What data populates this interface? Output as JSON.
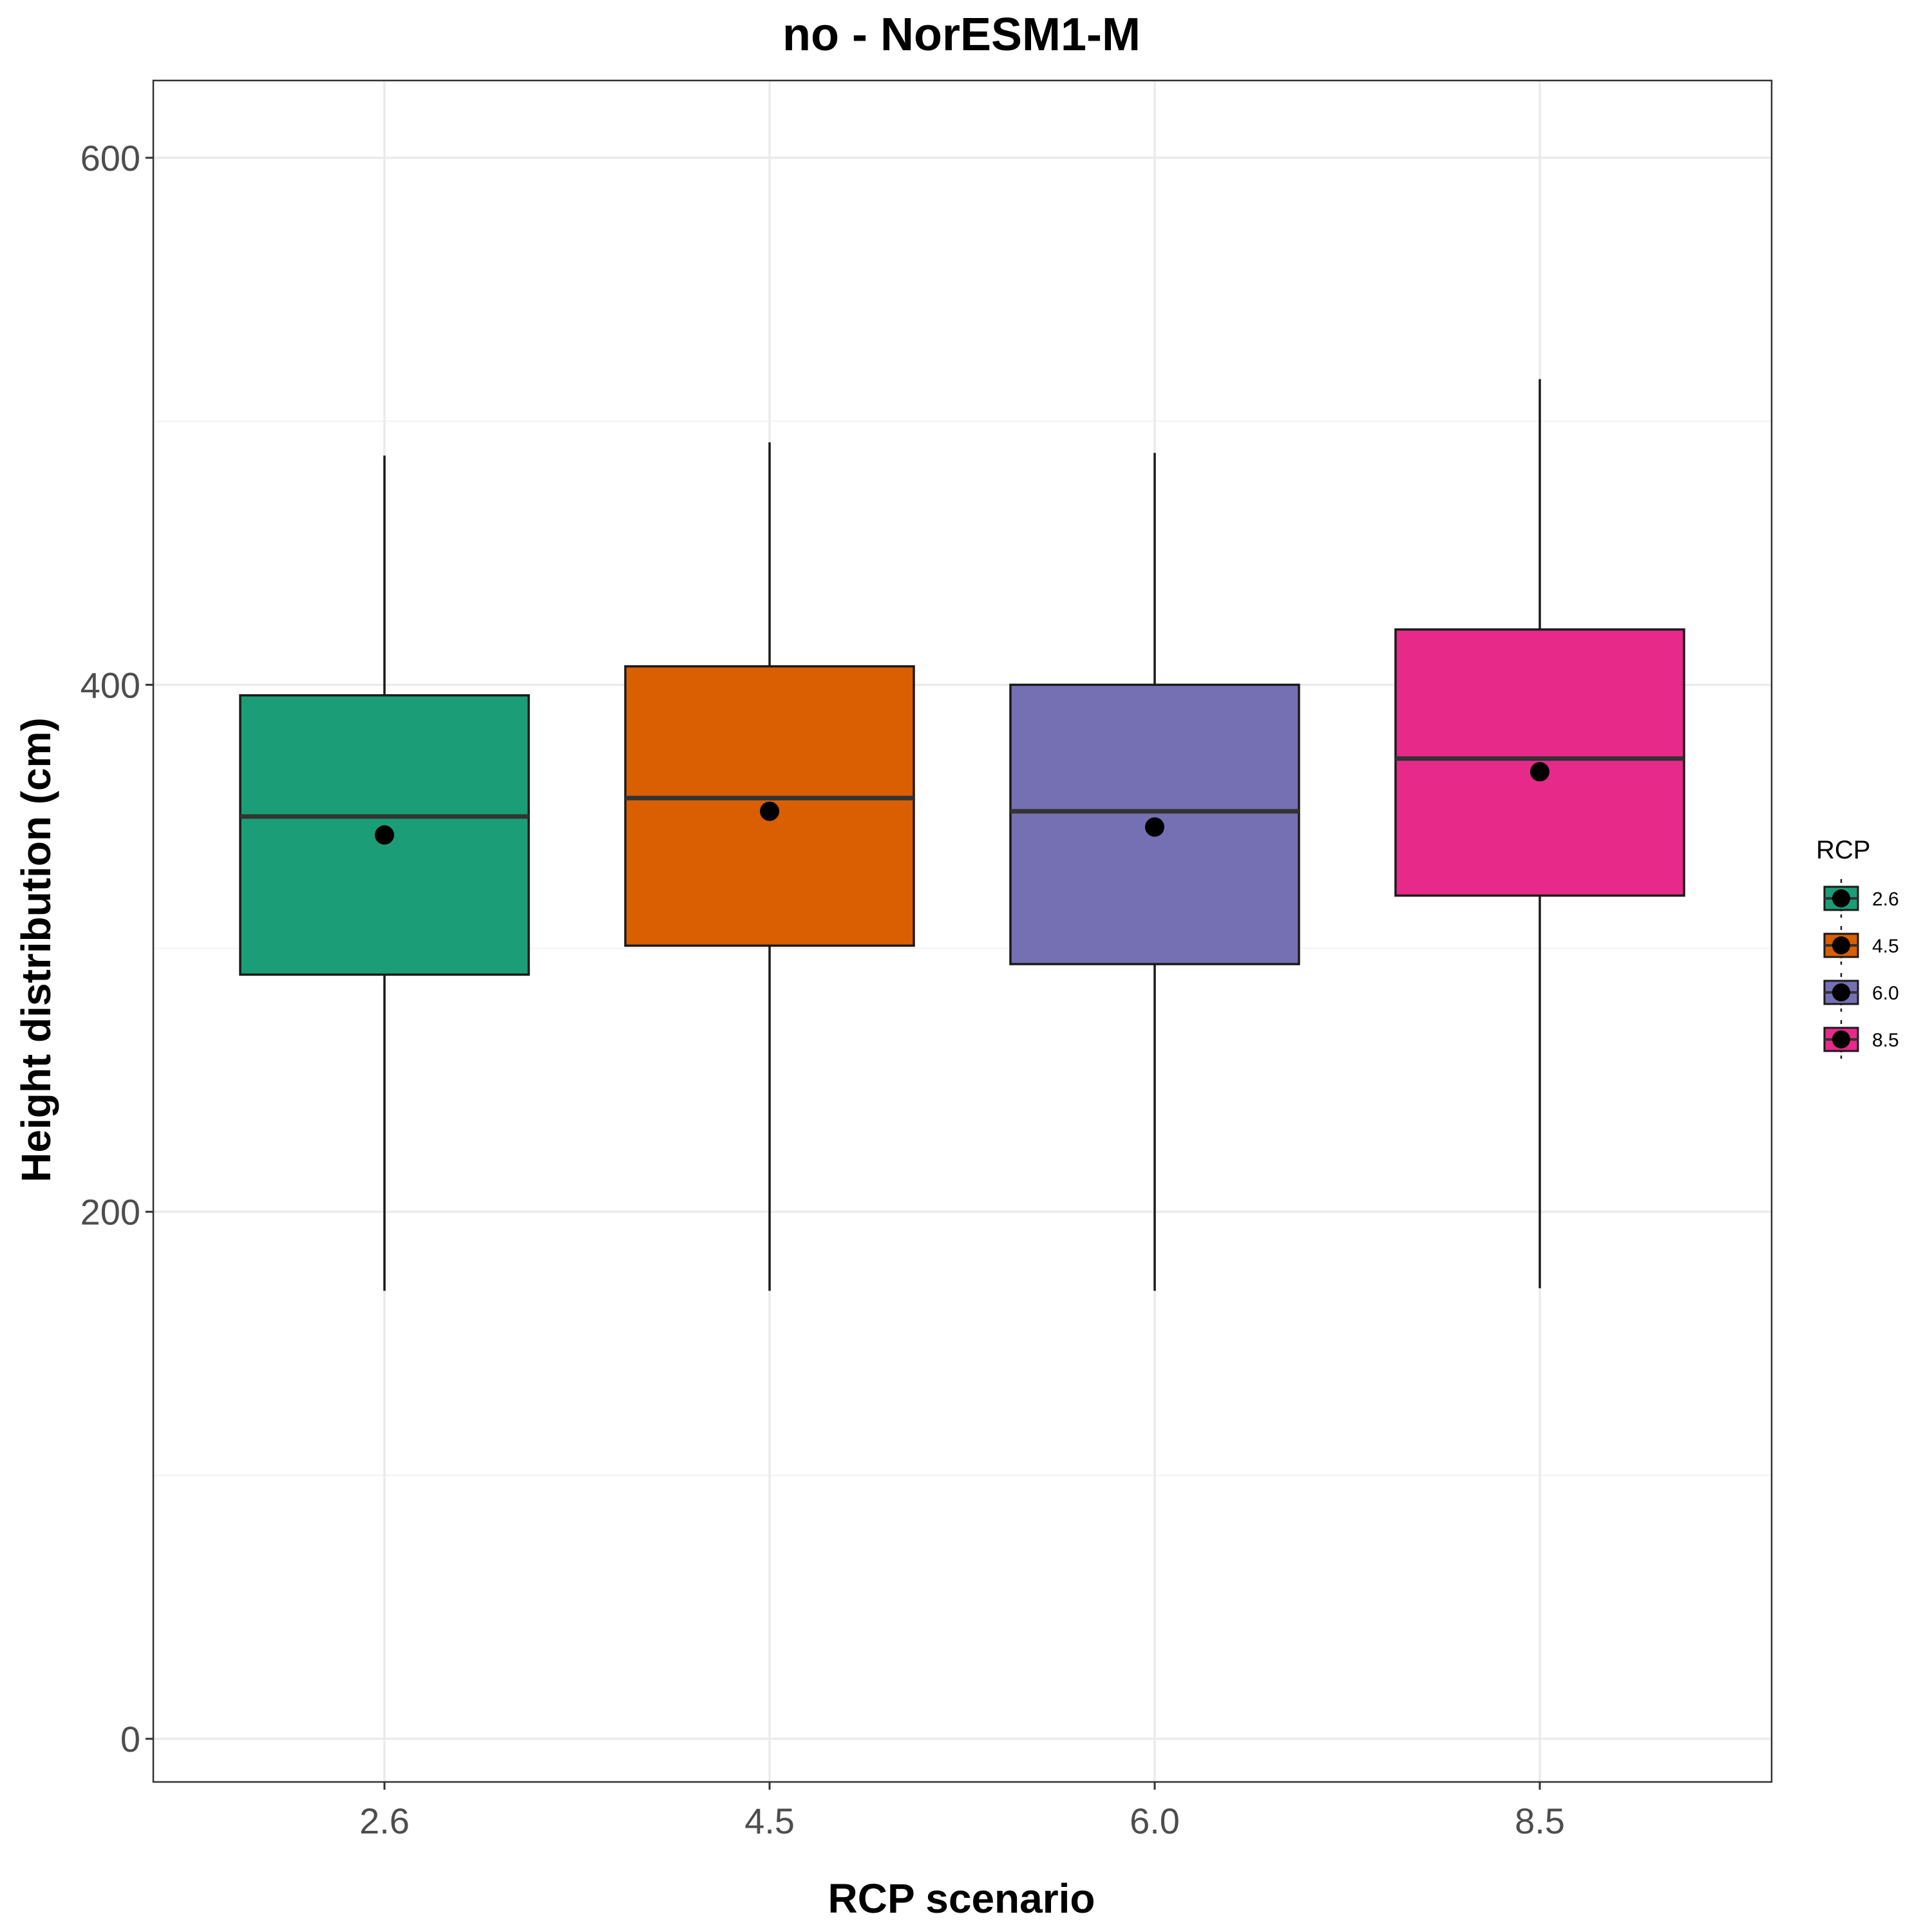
{
  "chart_data": {
    "type": "boxplot",
    "title": "no - NorESM1-M",
    "xlabel": "RCP scenario",
    "ylabel": "Height distribution (cm)",
    "ylim": [
      -30,
      635
    ],
    "yticks": [
      0,
      200,
      400,
      600
    ],
    "yticks_minor": [
      100,
      300,
      500
    ],
    "categories": [
      "2.6",
      "4.5",
      "6.0",
      "8.5"
    ],
    "series": [
      {
        "category": "2.6",
        "color": "#1b9e77",
        "whisker_low": 170,
        "q1": 290,
        "median": 350,
        "q3": 396,
        "whisker_high": 487,
        "mean": 343
      },
      {
        "category": "4.5",
        "color": "#d95f02",
        "whisker_low": 170,
        "q1": 301,
        "median": 357,
        "q3": 407,
        "whisker_high": 492,
        "mean": 352
      },
      {
        "category": "6.0",
        "color": "#7570b3",
        "whisker_low": 170,
        "q1": 294,
        "median": 352,
        "q3": 400,
        "whisker_high": 488,
        "mean": 346
      },
      {
        "category": "8.5",
        "color": "#e7298a",
        "whisker_low": 171,
        "q1": 320,
        "median": 372,
        "q3": 421,
        "whisker_high": 516,
        "mean": 367
      }
    ],
    "legend": {
      "title": "RCP",
      "position": "right",
      "entries": [
        "2.6",
        "4.5",
        "6.0",
        "8.5"
      ]
    },
    "grid": true
  }
}
